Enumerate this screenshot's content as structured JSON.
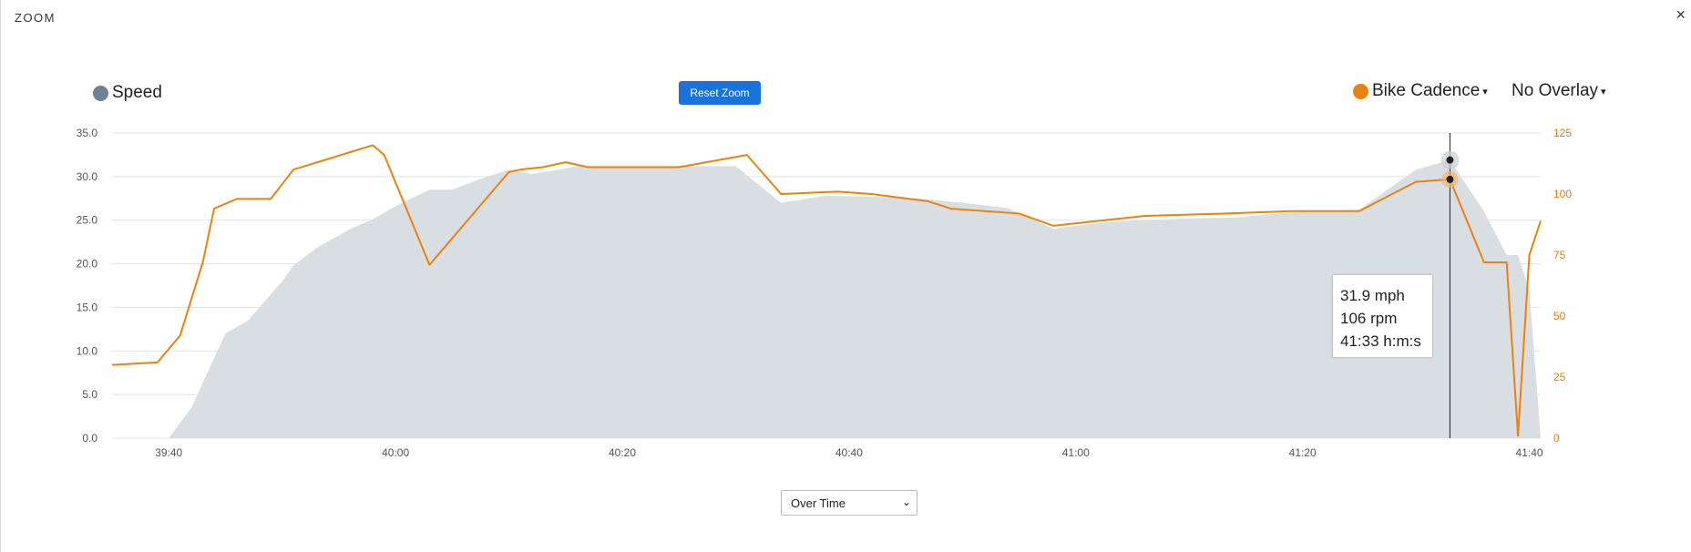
{
  "modal": {
    "title": "ZOOM",
    "close_label": "×"
  },
  "controls": {
    "reset_zoom": "Reset Zoom",
    "right_metric": "Bike Cadence",
    "overlay": "No Overlay",
    "mode": "Over Time",
    "caret": "▾",
    "chevron": "⌄"
  },
  "colors": {
    "speed": "#d9dee3",
    "speed_legend": "#6f8294",
    "cadence": "#e8830f",
    "reset_button": "#1a73d9"
  },
  "tooltip": {
    "line1": "31.9 mph",
    "line2": "106 rpm",
    "line3": "41:33 h:m:s"
  },
  "chart_data": {
    "type": "area",
    "x_unit": "m:s",
    "x_range": [
      "39:35",
      "41:41"
    ],
    "x_ticks": [
      "39:40",
      "40:00",
      "40:20",
      "40:40",
      "41:00",
      "41:20",
      "41:40"
    ],
    "y_left": {
      "range": [
        0,
        35
      ],
      "ticks": [
        "0.0",
        "5.0",
        "10.0",
        "15.0",
        "20.0",
        "25.0",
        "30.0",
        "35.0"
      ]
    },
    "y_right": {
      "range": [
        0,
        125
      ],
      "ticks": [
        "0",
        "25",
        "50",
        "75",
        "100",
        "125"
      ]
    },
    "grid": true,
    "legend": "top",
    "series": [
      {
        "name": "Speed",
        "axis": "left",
        "style": "area",
        "x": [
          "39:35",
          "39:40",
          "39:42",
          "39:45",
          "39:47",
          "39:50",
          "39:51",
          "39:53",
          "39:56",
          "39:58",
          "40:00",
          "40:03",
          "40:05",
          "40:07",
          "40:10",
          "40:12",
          "40:14",
          "40:16",
          "40:20",
          "40:25",
          "40:30",
          "40:34",
          "40:38",
          "40:42",
          "40:46",
          "40:50",
          "40:54",
          "40:58",
          "41:02",
          "41:06",
          "41:10",
          "41:14",
          "41:18",
          "41:22",
          "41:25",
          "41:30",
          "41:33",
          "41:36",
          "41:38",
          "41:39",
          "41:40",
          "41:41"
        ],
        "values": [
          0,
          0,
          3.5,
          12,
          13.5,
          18,
          19.8,
          21.8,
          24,
          25.1,
          26.6,
          28.5,
          28.5,
          29.5,
          30.8,
          30.3,
          30.7,
          31.2,
          31.2,
          31.2,
          31.2,
          27,
          27.8,
          27.7,
          27.5,
          27,
          26.4,
          24,
          24.7,
          25,
          25.2,
          25.3,
          25.8,
          26.1,
          26.2,
          30.8,
          31.9,
          26,
          21,
          21,
          17,
          0
        ]
      },
      {
        "name": "Bike Cadence",
        "axis": "right",
        "style": "line",
        "x": [
          "39:35",
          "39:39",
          "39:41",
          "39:43",
          "39:44",
          "39:46",
          "39:48",
          "39:49",
          "39:51",
          "39:58",
          "39:59",
          "40:03",
          "40:10",
          "40:11",
          "40:13",
          "40:15",
          "40:17",
          "40:20",
          "40:22",
          "40:25",
          "40:31",
          "40:34",
          "40:39",
          "40:42",
          "40:47",
          "40:49",
          "40:55",
          "40:58",
          "41:06",
          "41:13",
          "41:19",
          "41:25",
          "41:30",
          "41:33",
          "41:36",
          "41:38",
          "41:39",
          "41:40",
          "41:41"
        ],
        "values": [
          30,
          31,
          42,
          72,
          94,
          98,
          98,
          98,
          110,
          120,
          116,
          71,
          109,
          110,
          111,
          113,
          111,
          111,
          111,
          111,
          116,
          100,
          101,
          100,
          97,
          94,
          92,
          87,
          91,
          92,
          93,
          93,
          105,
          106,
          72,
          72,
          1,
          75,
          89
        ]
      }
    ],
    "crosshair_x": "41:33"
  }
}
